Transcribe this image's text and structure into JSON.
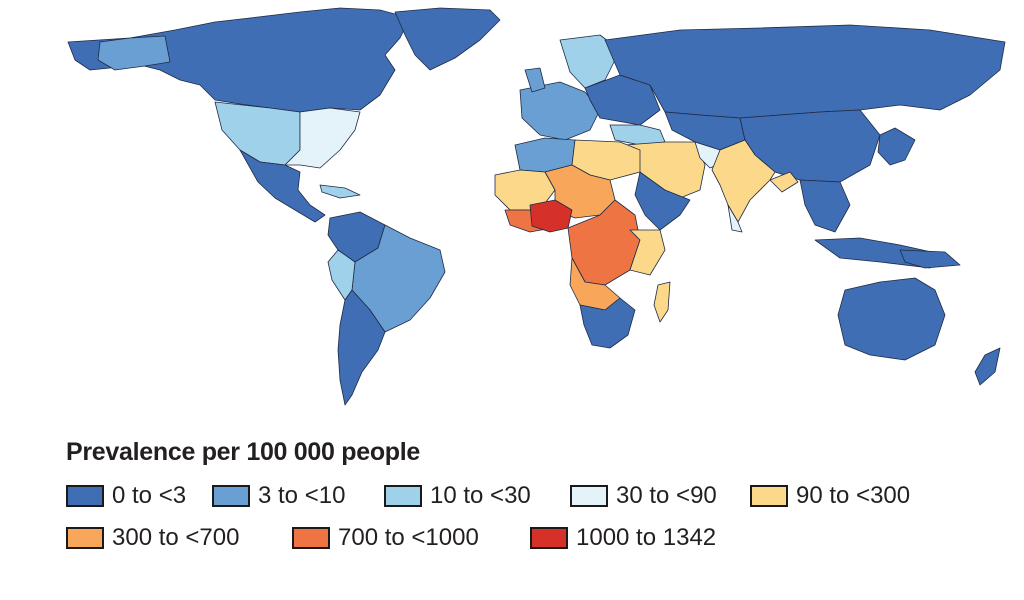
{
  "map": {
    "legend_title": "Prevalence per 100 000 people",
    "classes": [
      {
        "label": "0 to <3",
        "color": "#3f6eb5"
      },
      {
        "label": "3 to <10",
        "color": "#6a9fd4"
      },
      {
        "label": "10 to <30",
        "color": "#9fd1ea"
      },
      {
        "label": "30 to <90",
        "color": "#e4f2fa"
      },
      {
        "label": "90 to <300",
        "color": "#fcd98a"
      },
      {
        "label": "300 to <700",
        "color": "#f8a75a"
      },
      {
        "label": "700 to <1000",
        "color": "#ef7444"
      },
      {
        "label": "1000 to 1342",
        "color": "#d63128"
      }
    ],
    "colors": {
      "border": "#1f2a44",
      "ocean": "#ffffff"
    }
  }
}
